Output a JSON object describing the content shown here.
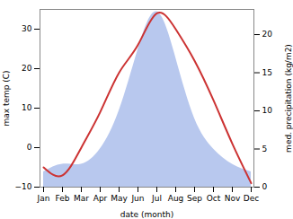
{
  "chart_data": {
    "type": "line",
    "categories": [
      "Jan",
      "Feb",
      "Mar",
      "Apr",
      "May",
      "Jun",
      "Jul",
      "Aug",
      "Sep",
      "Oct",
      "Nov",
      "Dec"
    ],
    "xlabel": "date (month)",
    "ylabel": "max temp (C)",
    "y2label": "med. precipitation (kg/m2)",
    "ylim": [
      -10,
      35
    ],
    "yticks": [
      -10,
      0,
      10,
      20,
      30
    ],
    "y2lim": [
      0,
      23.3
    ],
    "y2ticks": [
      0,
      5,
      10,
      15,
      20
    ],
    "series": [
      {
        "name": "med. precipitation (kg/m2)",
        "type": "area",
        "axis": "y2",
        "color": "#b8c8ee",
        "values": [
          2,
          3,
          3,
          5,
          10,
          18,
          23,
          17,
          9,
          5,
          3,
          2
        ]
      },
      {
        "name": "max temp (C)",
        "type": "line",
        "color": "#cc3333",
        "values": [
          -5,
          -7,
          0,
          9,
          19,
          26,
          34,
          30,
          22,
          12,
          1,
          -9
        ]
      }
    ]
  }
}
